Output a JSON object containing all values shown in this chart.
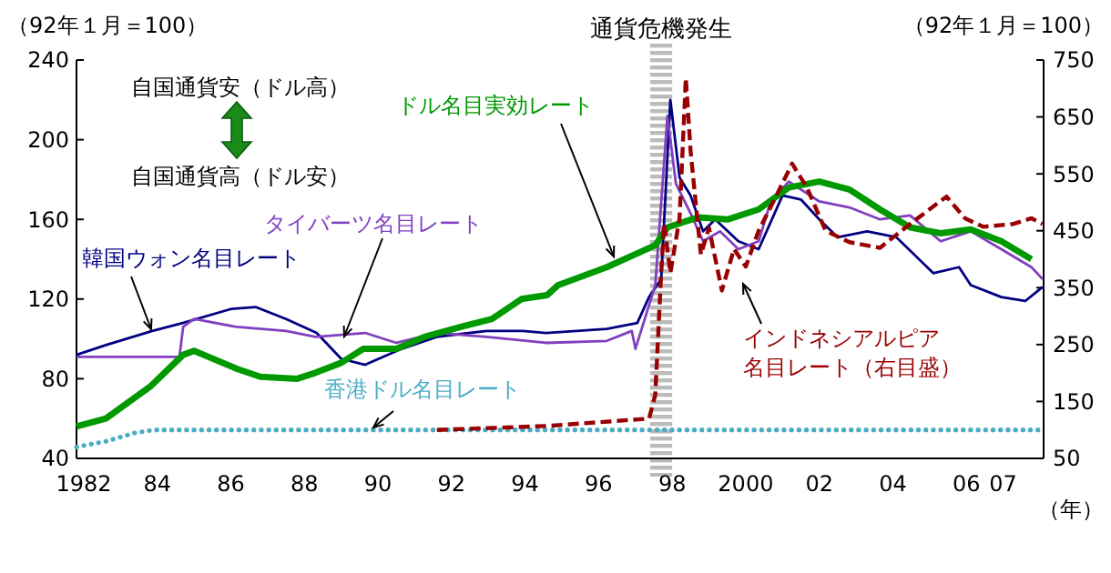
{
  "chart_data": {
    "type": "line",
    "ylabel": "（92年１月＝100）",
    "y2label": "（92年１月＝100）",
    "xlabel": "（年）",
    "xlim": [
      1981.8,
      2008.1
    ],
    "xticks": [
      1982,
      {
        "value": 1984,
        "label": "84"
      },
      {
        "value": 1986,
        "label": "86"
      },
      {
        "value": 1988,
        "label": "88"
      },
      {
        "value": 1990,
        "label": "90"
      },
      {
        "value": 1992,
        "label": "92"
      },
      {
        "value": 1994,
        "label": "94"
      },
      {
        "value": 1996,
        "label": "96"
      },
      {
        "value": 1998,
        "label": "98"
      },
      2000,
      {
        "value": 2002,
        "label": "02"
      },
      {
        "value": 2004,
        "label": "04"
      },
      {
        "value": 2006,
        "label": "06"
      },
      {
        "value": 2007,
        "label": "07"
      }
    ],
    "ylim": [
      40,
      240
    ],
    "yticks": [
      40,
      80,
      120,
      160,
      200,
      240
    ],
    "y2lim": [
      50,
      750
    ],
    "y2ticks": [
      50,
      150,
      250,
      350,
      450,
      550,
      650,
      750
    ],
    "grid": false,
    "legend": false,
    "bands": [
      {
        "axis": "x",
        "from": 1997.4,
        "to": 1998.0,
        "label": "通貨危機発生",
        "color": "#bbbbbb"
      }
    ],
    "annotations": [
      "自国通貨安（ドル高）",
      "自国通貨高（ドル安）"
    ],
    "series": [
      {
        "name": "韓国ウォン名目レート",
        "color": "#000080",
        "line_style": "solid",
        "x": [
          1981.8,
          1982.62,
          1983.86,
          1984.69,
          1986.0,
          1986.67,
          1987.5,
          1988.33,
          1989.0,
          1989.65,
          1990.64,
          1991.6,
          1992.95,
          1993.94,
          1994.57,
          1996.22,
          1997.05,
          1997.37,
          1997.7,
          1997.95,
          1998.2,
          1998.5,
          1998.84,
          1999.17,
          1999.8,
          2000.35,
          2001.0,
          2001.5,
          2002.0,
          2002.5,
          2003.3,
          2004.1,
          2005.1,
          2005.8,
          2006.12,
          2006.95,
          2007.6,
          2008.07
        ],
        "values": [
          92,
          97,
          104,
          108,
          115,
          116,
          110,
          103,
          90,
          87,
          95,
          101,
          104,
          104,
          103,
          105,
          108,
          121,
          130,
          220,
          181,
          172,
          154,
          160,
          149,
          145,
          172,
          170,
          160,
          151,
          154,
          151,
          133,
          136,
          127,
          121,
          119,
          126
        ]
      },
      {
        "name": "タイバーツ名目レート",
        "color": "#8040c0",
        "line_style": "solid",
        "x": [
          1981.8,
          1984.6,
          1984.7,
          1985.0,
          1986.16,
          1987.5,
          1988.3,
          1989.65,
          1990.5,
          1991.6,
          1992.95,
          1994.57,
          1996.22,
          1996.9,
          1997.0,
          1997.54,
          1997.87,
          1998.1,
          1998.5,
          1998.84,
          1999.3,
          1999.8,
          2000.35,
          2000.68,
          2001.17,
          2002.0,
          2002.82,
          2003.65,
          2004.47,
          2005.3,
          2006.12,
          2006.95,
          2007.77,
          2008.07
        ],
        "values": [
          91,
          91,
          106,
          110,
          106,
          104,
          101,
          103,
          98,
          103,
          101,
          98,
          99,
          104,
          95,
          127,
          212,
          178,
          163,
          149,
          154,
          145,
          149,
          169,
          179,
          169,
          166,
          160,
          162,
          149,
          154,
          145,
          136,
          130
        ]
      },
      {
        "name": "ドル名目実効レート",
        "color": "#009900",
        "line_style": "solid",
        "x": [
          1981.8,
          1982.6,
          1983.8,
          1984.7,
          1985.0,
          1986.16,
          1986.8,
          1987.8,
          1988.3,
          1989.0,
          1989.6,
          1990.5,
          1991.26,
          1992.25,
          1993.1,
          1993.9,
          1994.6,
          1994.9,
          1996.22,
          1997.54,
          1997.87,
          1998.7,
          1999.52,
          2000.35,
          2001.17,
          2002.0,
          2002.82,
          2003.65,
          2004.47,
          2005.3,
          2006.12,
          2006.95,
          2007.77
        ],
        "values": [
          56,
          60,
          76,
          92,
          94,
          85,
          81,
          80,
          83,
          88,
          95,
          95,
          101,
          106,
          110,
          120,
          122,
          127,
          136,
          147,
          156,
          161,
          160,
          165,
          176,
          179,
          175,
          165,
          156,
          153,
          155,
          149,
          140
        ]
      },
      {
        "name": "香港ドル名目レート",
        "color": "#4bacc6",
        "line_style": "dotted",
        "axis": "y2",
        "x": [
          1981.8,
          1982.6,
          1983.4,
          1983.9,
          2008.07
        ],
        "values": [
          70,
          80,
          95,
          100,
          100
        ]
      },
      {
        "name": "インドネシアルピア名目レート（右目盛）",
        "color": "#990000",
        "line_style": "dashed",
        "axis": "y2",
        "x": [
          1991.6,
          1994.6,
          1997.37,
          1997.54,
          1997.7,
          1997.78,
          1997.95,
          1998.2,
          1998.37,
          1998.5,
          1998.78,
          1999.0,
          1999.35,
          1999.68,
          2000.0,
          2000.35,
          2000.85,
          2001.26,
          2001.67,
          2002.17,
          2002.82,
          2003.65,
          2004.47,
          2005.46,
          2005.96,
          2006.46,
          2007.28,
          2007.77,
          2008.07
        ],
        "values": [
          100,
          107,
          120,
          162,
          376,
          462,
          376,
          472,
          718,
          590,
          408,
          455,
          345,
          418,
          387,
          450,
          514,
          568,
          525,
          450,
          430,
          420,
          462,
          510,
          472,
          457,
          462,
          472,
          462
        ]
      }
    ]
  }
}
